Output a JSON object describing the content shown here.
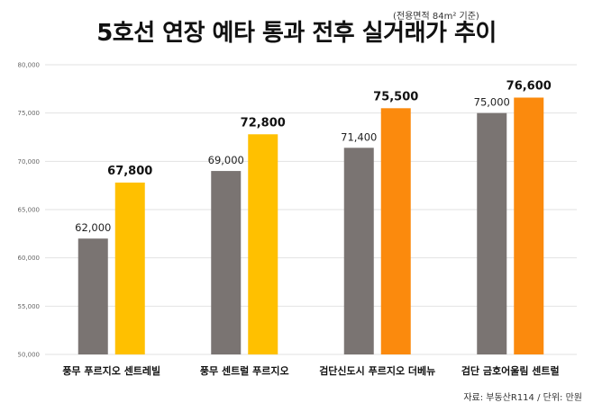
{
  "title": "5호선 연장 예타 통과 전후 실거래가 추이",
  "subtitle": "(전용면적 84m² 기준)",
  "source": "자료: 부동산R114 / 단위: 만원",
  "colors": {
    "before": "#7a7472",
    "after_yellow": "#ffc000",
    "after_orange": "#fb8a0d",
    "grid": "#e2e2e2"
  },
  "chart_data": {
    "type": "bar",
    "categories": [
      "풍무 푸르지오 센트레빌",
      "풍무 센트럴 푸르지오",
      "검단신도시 푸르지오 더베뉴",
      "검단 금호어울림 센트럴"
    ],
    "series": [
      {
        "values": [
          62000,
          69000,
          71400,
          75000
        ],
        "labels": [
          "62,000",
          "69,000",
          "71,400",
          "75,000"
        ]
      },
      {
        "values": [
          67800,
          72800,
          75500,
          76600
        ],
        "labels": [
          "67,800",
          "72,800",
          "75,500",
          "76,600"
        ]
      }
    ],
    "yticks": [
      "50,000",
      "55,000",
      "60,000",
      "65,000",
      "70,000",
      "75,000",
      "80,000"
    ],
    "ylim": [
      50000,
      80000
    ],
    "grid": true
  }
}
